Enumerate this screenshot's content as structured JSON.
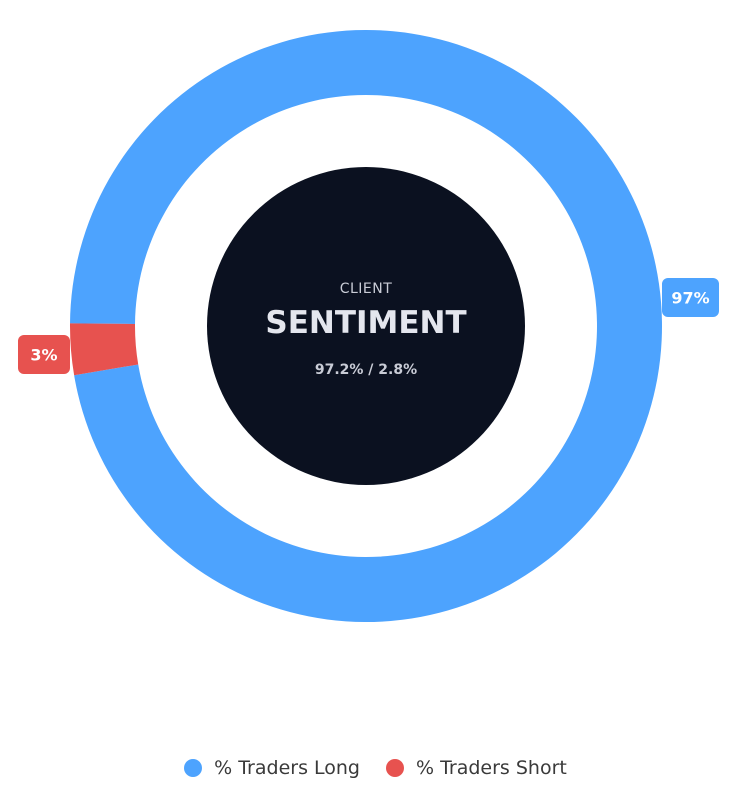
{
  "chart_data": {
    "type": "pie",
    "subtype": "donut",
    "categories": [
      "% Traders Long",
      "% Traders Short"
    ],
    "values": [
      97.2,
      2.8
    ],
    "data_labels": [
      "97%",
      "3%"
    ],
    "colors": [
      "#4da3fe",
      "#e7524f"
    ],
    "legend": "bottom",
    "center": {
      "subtitle": "CLIENT",
      "title": "SENTIMENT",
      "ratio": "97.2% / 2.8%",
      "color": "#0b1120"
    }
  }
}
